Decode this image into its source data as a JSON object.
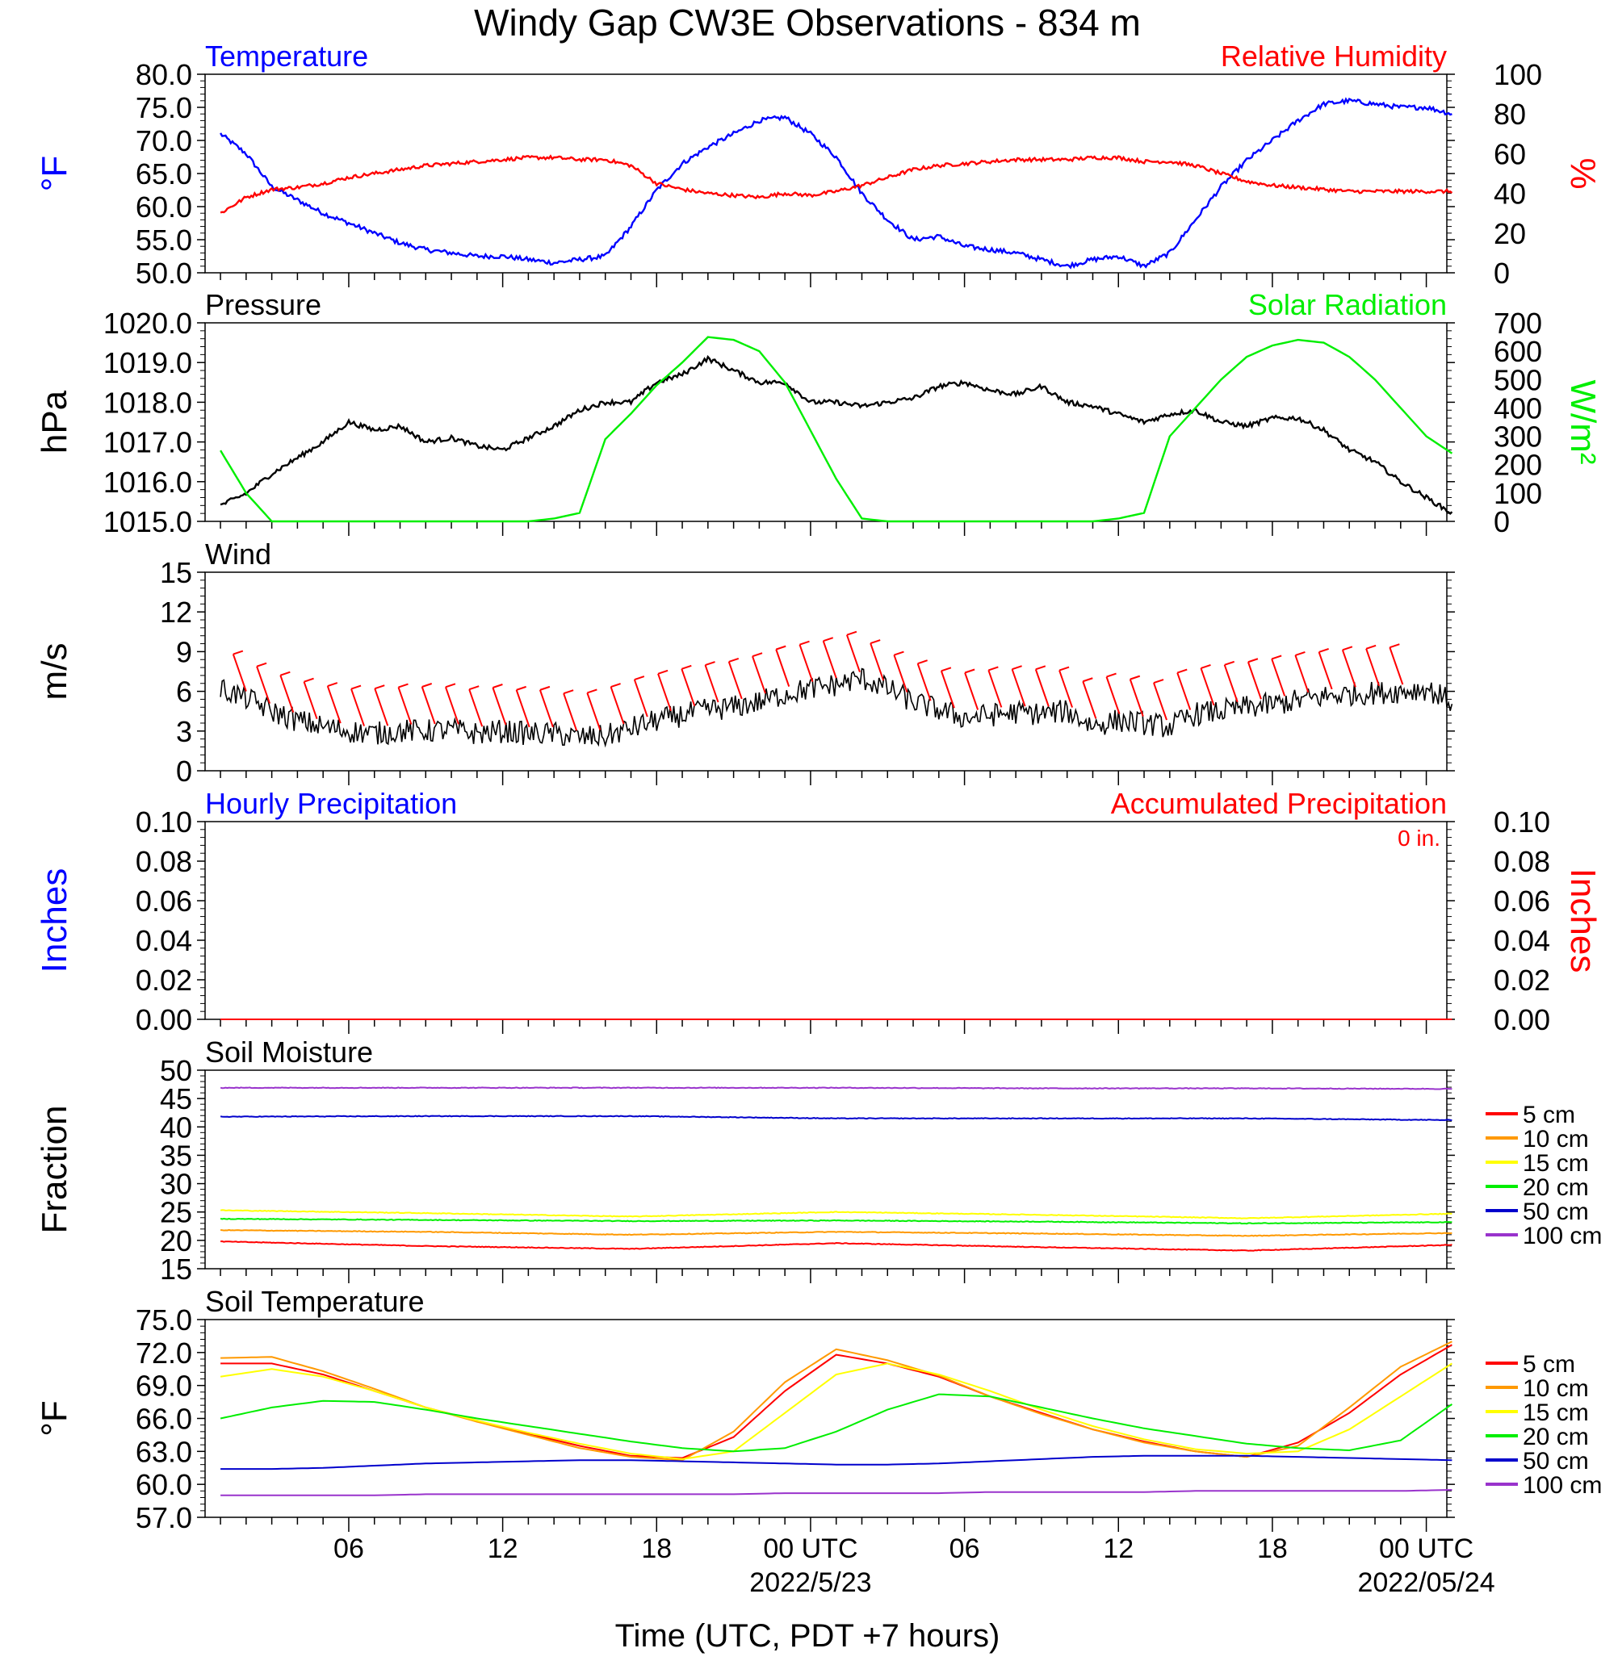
{
  "title": "Windy Gap CW3E Observations - 834 m",
  "xlabel": "Time (UTC, PDT +7 hours)",
  "x_ticks": [
    {
      "label": "06",
      "date": ""
    },
    {
      "label": "12",
      "date": ""
    },
    {
      "label": "18",
      "date": ""
    },
    {
      "label": "00 UTC",
      "date": "2022/5/23"
    },
    {
      "label": "06",
      "date": ""
    },
    {
      "label": "12",
      "date": ""
    },
    {
      "label": "18",
      "date": ""
    },
    {
      "label": "00 UTC",
      "date": "2022/05/24"
    }
  ],
  "colors": {
    "blue": "#0000ff",
    "red": "#ff0000",
    "green": "#00ee00",
    "black": "#000000",
    "orange": "#ff9900",
    "yellow": "#ffff00",
    "dark_blue": "#0000cc",
    "purple": "#9933cc"
  },
  "chart_data": [
    {
      "type": "line",
      "title_left": "Temperature",
      "title_right": "Relative Humidity",
      "ylabel_left": "°F",
      "ylabel_right": "%",
      "ylim_left": [
        50,
        80
      ],
      "ylim_right": [
        0,
        100
      ],
      "yticks_left": [
        "80.0",
        "75.0",
        "70.0",
        "65.0",
        "60.0",
        "55.0",
        "50.0"
      ],
      "yticks_right": [
        "100",
        "80",
        "60",
        "40",
        "20",
        "0"
      ],
      "x_hours": [
        1,
        2,
        3,
        4,
        5,
        6,
        7,
        8,
        9,
        10,
        11,
        12,
        13,
        14,
        15,
        16,
        17,
        18,
        19,
        20,
        21,
        22,
        23,
        24,
        25,
        26,
        27,
        28,
        29,
        30,
        31,
        32,
        33,
        34,
        35,
        36,
        37,
        38,
        39,
        40,
        41,
        42,
        43,
        44,
        45,
        46,
        47,
        48,
        49
      ],
      "series": [
        {
          "name": "Temperature",
          "axis": "left",
          "color": "#0000ff",
          "values": [
            71,
            68,
            63,
            61,
            59,
            57.5,
            56,
            54.5,
            53.5,
            53,
            52.5,
            52.5,
            52,
            51.5,
            52,
            52.5,
            57,
            62.5,
            66.5,
            69,
            71,
            73,
            73.5,
            71,
            67.5,
            62,
            58,
            55,
            55.5,
            54,
            53.5,
            53,
            52,
            51,
            52,
            52.5,
            51,
            53,
            58,
            63,
            67,
            70,
            73,
            75.5,
            76,
            75.5,
            75,
            75,
            74
          ]
        },
        {
          "name": "Relative Humidity",
          "axis": "right",
          "color": "#ff0000",
          "values": [
            30,
            38,
            42,
            43,
            45,
            48,
            50,
            52,
            54,
            55,
            56,
            57,
            58,
            58,
            57,
            57,
            54,
            45,
            42,
            40,
            39,
            38,
            40,
            39,
            41,
            44,
            48,
            52,
            54,
            55,
            56,
            57,
            57,
            57,
            58,
            58,
            56,
            56,
            54,
            50,
            46,
            44,
            43,
            42,
            41,
            41,
            41,
            41,
            41
          ]
        }
      ]
    },
    {
      "type": "line",
      "title_left": "Pressure",
      "title_right": "Solar Radiation",
      "ylabel_left": "hPa",
      "ylabel_right": "W/m²",
      "ylim_left": [
        1015,
        1020
      ],
      "ylim_right": [
        0,
        700
      ],
      "yticks_left": [
        "1020.0",
        "1019.0",
        "1018.0",
        "1017.0",
        "1016.0",
        "1015.0"
      ],
      "yticks_right": [
        "700",
        "600",
        "500",
        "400",
        "300",
        "200",
        "100",
        "0"
      ],
      "x_hours": [
        1,
        2,
        3,
        4,
        5,
        6,
        7,
        8,
        9,
        10,
        11,
        12,
        13,
        14,
        15,
        16,
        17,
        18,
        19,
        20,
        21,
        22,
        23,
        24,
        25,
        26,
        27,
        28,
        29,
        30,
        31,
        32,
        33,
        34,
        35,
        36,
        37,
        38,
        39,
        40,
        41,
        42,
        43,
        44,
        45,
        46,
        47,
        48,
        49
      ],
      "series": [
        {
          "name": "Pressure",
          "axis": "left",
          "color": "#000000",
          "values": [
            1015.4,
            1015.7,
            1016.2,
            1016.6,
            1017.0,
            1017.5,
            1017.3,
            1017.4,
            1017.0,
            1017.1,
            1016.9,
            1016.8,
            1017.1,
            1017.4,
            1017.8,
            1018.0,
            1018.0,
            1018.5,
            1018.7,
            1019.1,
            1018.8,
            1018.5,
            1018.5,
            1018.0,
            1018.0,
            1017.9,
            1018.0,
            1018.1,
            1018.4,
            1018.5,
            1018.3,
            1018.2,
            1018.4,
            1018.0,
            1017.9,
            1017.7,
            1017.5,
            1017.7,
            1017.8,
            1017.5,
            1017.4,
            1017.6,
            1017.6,
            1017.3,
            1016.8,
            1016.5,
            1016.0,
            1015.6,
            1015.2
          ]
        },
        {
          "name": "Solar Radiation",
          "axis": "right",
          "color": "#00ee00",
          "values": [
            250,
            100,
            0,
            0,
            0,
            0,
            0,
            0,
            0,
            0,
            0,
            0,
            0,
            10,
            30,
            290,
            380,
            480,
            560,
            650,
            640,
            600,
            490,
            320,
            150,
            10,
            0,
            0,
            0,
            0,
            0,
            0,
            0,
            0,
            0,
            10,
            30,
            300,
            400,
            500,
            580,
            620,
            640,
            630,
            580,
            500,
            400,
            300,
            240
          ]
        }
      ]
    },
    {
      "type": "line",
      "title_left": "Wind",
      "ylabel_left": "m/s",
      "ylim_left": [
        0,
        15
      ],
      "yticks_left": [
        "15",
        "12",
        "9",
        "6",
        "3",
        "0"
      ],
      "x_hours": [
        1,
        2,
        3,
        4,
        5,
        6,
        7,
        8,
        9,
        10,
        11,
        12,
        13,
        14,
        15,
        16,
        17,
        18,
        19,
        20,
        21,
        22,
        23,
        24,
        25,
        26,
        27,
        28,
        29,
        30,
        31,
        32,
        33,
        34,
        35,
        36,
        37,
        38,
        39,
        40,
        41,
        42,
        43,
        44,
        45,
        46,
        47,
        48,
        49
      ],
      "series": [
        {
          "name": "Wind",
          "axis": "left",
          "color": "#000000",
          "values": [
            6.2,
            5.5,
            4.5,
            3.8,
            3.3,
            3.0,
            2.8,
            3.0,
            3.0,
            3.1,
            2.8,
            3.0,
            2.8,
            2.8,
            2.5,
            2.6,
            3.2,
            3.8,
            4.2,
            4.6,
            4.8,
            5.2,
            5.8,
            6.2,
            6.5,
            7.0,
            6.2,
            5.2,
            4.6,
            4.0,
            4.2,
            4.4,
            4.3,
            4.5,
            3.4,
            3.8,
            3.6,
            3.3,
            4.3,
            4.5,
            4.8,
            5.0,
            5.3,
            5.6,
            5.8,
            5.9,
            6.0,
            6.2,
            5.2
          ]
        }
      ],
      "barbs": {
        "color": "#ff0000",
        "count": 50
      }
    },
    {
      "type": "line",
      "title_left": "Hourly Precipitation",
      "title_right": "Accumulated Precipitation",
      "annotation": "0 in.",
      "ylabel_left": "Inches",
      "ylabel_right": "Inches",
      "ylim_left": [
        0,
        0.1
      ],
      "ylim_right": [
        0,
        0.1
      ],
      "yticks_left": [
        "0.10",
        "0.08",
        "0.06",
        "0.04",
        "0.02",
        "0.00"
      ],
      "yticks_right": [
        "0.10",
        "0.08",
        "0.06",
        "0.04",
        "0.02",
        "0.00"
      ],
      "x_hours": [
        1,
        49
      ],
      "series": [
        {
          "name": "Accumulated Precipitation",
          "axis": "right",
          "color": "#ff0000",
          "values": [
            0,
            0
          ]
        }
      ]
    },
    {
      "type": "line",
      "title_left": "Soil Moisture",
      "ylabel_left": "Fraction",
      "ylim_left": [
        15,
        50
      ],
      "yticks_left": [
        "50",
        "45",
        "40",
        "35",
        "30",
        "25",
        "20",
        "15"
      ],
      "legend": "right",
      "x_hours": [
        1,
        9,
        17,
        25,
        33,
        41,
        49
      ],
      "series": [
        {
          "name": "5 cm",
          "color": "#ff0000",
          "values": [
            19.8,
            19.0,
            18.5,
            19.5,
            18.8,
            18.2,
            19.2
          ]
        },
        {
          "name": "10 cm",
          "color": "#ff9900",
          "values": [
            21.8,
            21.5,
            21.0,
            21.5,
            21.2,
            20.8,
            21.3
          ]
        },
        {
          "name": "15 cm",
          "color": "#ffff00",
          "values": [
            25.3,
            24.8,
            24.2,
            25.0,
            24.5,
            23.9,
            24.7
          ]
        },
        {
          "name": "20 cm",
          "color": "#00ee00",
          "values": [
            23.8,
            23.6,
            23.4,
            23.5,
            23.3,
            23.0,
            23.2
          ]
        },
        {
          "name": "50 cm",
          "color": "#0000cc",
          "values": [
            41.8,
            41.9,
            41.9,
            41.5,
            41.5,
            41.5,
            41.2
          ]
        },
        {
          "name": "100 cm",
          "color": "#9933cc",
          "values": [
            46.9,
            46.9,
            46.9,
            46.9,
            46.8,
            46.8,
            46.7
          ]
        }
      ]
    },
    {
      "type": "line",
      "title_left": "Soil Temperature",
      "ylabel_left": "°F",
      "ylim_left": [
        57,
        75
      ],
      "yticks_left": [
        "75.0",
        "72.0",
        "69.0",
        "66.0",
        "63.0",
        "60.0",
        "57.0"
      ],
      "legend": "right",
      "x_hours": [
        1,
        3,
        5,
        7,
        9,
        11,
        13,
        15,
        17,
        19,
        21,
        23,
        25,
        27,
        29,
        31,
        33,
        35,
        37,
        39,
        41,
        43,
        45,
        47,
        49
      ],
      "series": [
        {
          "name": "5 cm",
          "color": "#ff0000",
          "values": [
            71.0,
            71.0,
            70.0,
            68.5,
            67.0,
            65.8,
            64.6,
            63.5,
            62.6,
            62.4,
            64.3,
            68.5,
            71.8,
            71.0,
            69.8,
            68.0,
            66.5,
            65.0,
            63.9,
            63.0,
            62.5,
            63.8,
            66.5,
            70.0,
            72.7
          ]
        },
        {
          "name": "10 cm",
          "color": "#ff9900",
          "values": [
            71.5,
            71.6,
            70.3,
            68.7,
            67.0,
            65.7,
            64.5,
            63.3,
            62.5,
            62.2,
            64.8,
            69.3,
            72.3,
            71.3,
            69.9,
            68.0,
            66.4,
            65.0,
            63.8,
            63.0,
            62.5,
            63.5,
            67.0,
            70.7,
            73.0
          ]
        },
        {
          "name": "15 cm",
          "color": "#ffff00",
          "values": [
            69.8,
            70.5,
            69.8,
            68.5,
            67.0,
            65.8,
            64.7,
            63.7,
            62.8,
            62.3,
            63.0,
            66.5,
            70.0,
            71.0,
            70.0,
            68.5,
            66.8,
            65.3,
            64.1,
            63.2,
            62.8,
            63.0,
            65.0,
            68.0,
            71.0
          ]
        },
        {
          "name": "20 cm",
          "color": "#00ee00",
          "values": [
            66.0,
            67.0,
            67.6,
            67.5,
            66.8,
            66.0,
            65.3,
            64.6,
            63.9,
            63.3,
            63.0,
            63.3,
            64.8,
            66.8,
            68.2,
            68.0,
            67.0,
            66.0,
            65.1,
            64.4,
            63.7,
            63.3,
            63.1,
            64.0,
            67.3
          ]
        },
        {
          "name": "50 cm",
          "color": "#0000cc",
          "values": [
            61.4,
            61.4,
            61.5,
            61.7,
            61.9,
            62.0,
            62.1,
            62.2,
            62.2,
            62.1,
            62.0,
            61.9,
            61.8,
            61.8,
            61.9,
            62.1,
            62.3,
            62.5,
            62.6,
            62.6,
            62.6,
            62.5,
            62.4,
            62.3,
            62.2
          ]
        },
        {
          "name": "100 cm",
          "color": "#9933cc",
          "values": [
            59.0,
            59.0,
            59.0,
            59.0,
            59.1,
            59.1,
            59.1,
            59.1,
            59.1,
            59.1,
            59.1,
            59.2,
            59.2,
            59.2,
            59.2,
            59.3,
            59.3,
            59.3,
            59.3,
            59.4,
            59.4,
            59.4,
            59.4,
            59.4,
            59.5
          ]
        }
      ]
    }
  ]
}
